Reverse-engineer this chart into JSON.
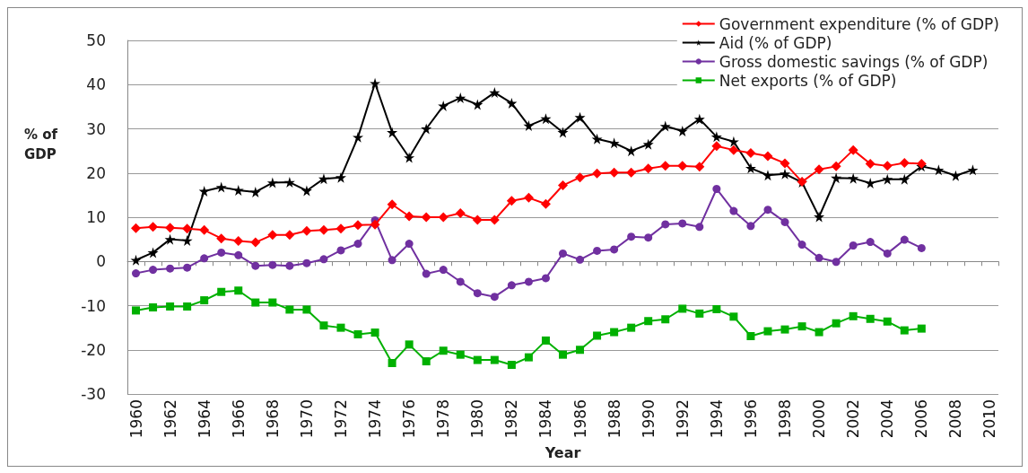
{
  "chart_data": {
    "type": "line",
    "xlabel": "Year",
    "ylabel": "% of GDP",
    "categories": [
      "1960",
      null,
      "1962",
      null,
      "1964",
      null,
      "1966",
      null,
      "1968",
      null,
      "1970",
      null,
      "1972",
      null,
      "1974",
      null,
      "1976",
      null,
      "1978",
      null,
      "1980",
      null,
      "1982",
      null,
      "1984",
      null,
      "1986",
      null,
      "1988",
      null,
      "1990",
      null,
      "1992",
      null,
      "1994",
      null,
      "1996",
      null,
      "1998",
      null,
      "2000",
      null,
      "2002",
      null,
      "2004",
      null,
      "2006",
      null,
      "2008",
      null,
      "2010"
    ],
    "series": [
      {
        "name": "Government expenditure (% of GDP)",
        "color": "#ff0000",
        "marker": "diamond",
        "values": [
          7.5,
          7.8,
          7.6,
          7.4,
          7.1,
          5.2,
          4.6,
          4.3,
          6.0,
          6.0,
          6.9,
          7.1,
          7.4,
          8.2,
          8.3,
          12.9,
          10.2,
          10.0,
          10.0,
          10.9,
          9.4,
          9.4,
          13.7,
          14.4,
          13.0,
          17.2,
          19.0,
          19.9,
          20.1,
          20.1,
          21.0,
          21.6,
          21.6,
          21.4,
          26.1,
          25.2,
          24.5,
          23.8,
          22.2,
          18.0,
          20.8,
          21.5,
          25.2,
          22.1,
          21.6,
          22.3,
          22.1,
          null,
          null,
          null,
          null
        ]
      },
      {
        "name": "Aid (% of GDP)",
        "color": "#000000",
        "marker": "star",
        "values": [
          0.3,
          2.0,
          5.0,
          4.7,
          15.9,
          16.8,
          16.1,
          15.7,
          17.8,
          17.9,
          16.0,
          18.7,
          19.0,
          28.1,
          40.3,
          29.2,
          23.5,
          30.0,
          35.2,
          37.0,
          35.5,
          38.2,
          35.8,
          30.7,
          32.3,
          29.2,
          32.6,
          27.7,
          26.8,
          25.0,
          26.5,
          30.6,
          29.5,
          32.2,
          28.2,
          27.1,
          21.1,
          19.5,
          19.8,
          17.9,
          10.1,
          18.9,
          18.8,
          17.7,
          18.6,
          18.6,
          21.5,
          20.7,
          19.4,
          20.7,
          null
        ]
      },
      {
        "name": "Gross domestic savings (% of GDP)",
        "color": "#7030a0",
        "marker": "circle",
        "values": [
          -2.7,
          -1.9,
          -1.6,
          -1.4,
          0.7,
          2.0,
          1.4,
          -1.0,
          -0.8,
          -1.0,
          -0.4,
          0.5,
          2.5,
          4.0,
          9.3,
          0.3,
          4.0,
          -2.8,
          -1.9,
          -4.6,
          -7.2,
          -8.0,
          -5.4,
          -4.6,
          -3.8,
          1.8,
          0.4,
          2.4,
          2.7,
          5.6,
          5.4,
          8.4,
          8.6,
          7.8,
          16.4,
          11.4,
          8.0,
          11.7,
          8.9,
          3.8,
          0.8,
          -0.1,
          3.6,
          4.4,
          1.8,
          4.9,
          3.0,
          null,
          null,
          null,
          null
        ]
      },
      {
        "name": "Net exports (% of GDP)",
        "color": "#00b000",
        "marker": "square",
        "values": [
          -11.1,
          -10.4,
          -10.2,
          -10.2,
          -8.8,
          -6.9,
          -6.6,
          -9.3,
          -9.3,
          -10.9,
          -10.9,
          -14.5,
          -15.0,
          -16.5,
          -16.1,
          -23.0,
          -18.8,
          -22.6,
          -20.2,
          -21.1,
          -22.3,
          -22.3,
          -23.4,
          -21.7,
          -17.9,
          -21.1,
          -20.0,
          -16.8,
          -16.0,
          -15.0,
          -13.5,
          -13.1,
          -10.7,
          -11.8,
          -10.8,
          -12.5,
          -16.9,
          -15.8,
          -15.4,
          -14.7,
          -16.0,
          -14.0,
          -12.4,
          -13.0,
          -13.6,
          -15.6,
          -15.2,
          null,
          null,
          null,
          null
        ]
      }
    ],
    "ylim": [
      -30,
      50
    ],
    "yticks": [
      -30,
      -20,
      -10,
      0,
      10,
      20,
      30,
      40,
      50
    ],
    "grid": "y",
    "legend": "top right",
    "line_style": "solid"
  }
}
